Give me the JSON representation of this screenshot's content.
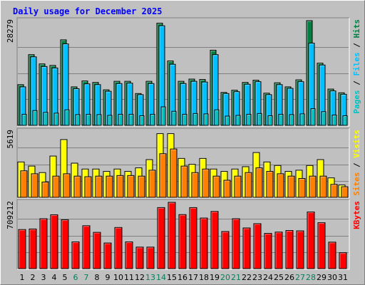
{
  "chart_data": {
    "type": "bar",
    "title": "Daily usage for December 2025",
    "x_labels": [
      "1",
      "2",
      "3",
      "4",
      "5",
      "6",
      "7",
      "8",
      "9",
      "10",
      "11",
      "12",
      "13",
      "14",
      "15",
      "16",
      "17",
      "18",
      "19",
      "20",
      "21",
      "22",
      "23",
      "24",
      "25",
      "26",
      "27",
      "28",
      "29",
      "30",
      "31"
    ],
    "weekend_days": [
      6,
      7,
      13,
      14,
      20,
      21,
      27,
      28
    ],
    "panels": [
      {
        "name": "hits-files-pages",
        "y_max_label": "28279",
        "y_max": 28279,
        "series_labels": [
          "Pages",
          "Files",
          "Hits"
        ],
        "series": [
          {
            "name": "Hits",
            "color": "#008040",
            "values": [
              11000,
              19100,
              16600,
              16200,
              23100,
              10400,
              12000,
              11600,
              9600,
              11900,
              11900,
              8600,
              11900,
              27600,
              17400,
              11900,
              12500,
              12400,
              20300,
              8900,
              9500,
              11600,
              12200,
              8700,
              11500,
              10400,
              12300,
              28279,
              16800,
              9800,
              8800
            ]
          },
          {
            "name": "Files",
            "color": "#00c0ff",
            "values": [
              10400,
              18500,
              15900,
              15500,
              22000,
              9900,
              11200,
              11000,
              9200,
              11300,
              11400,
              8300,
              11300,
              26900,
              16500,
              11300,
              11900,
              11700,
              19100,
              8600,
              9100,
              11100,
              11800,
              8300,
              11000,
              10000,
              11800,
              22200,
              16300,
              9300,
              8400
            ]
          },
          {
            "name": "Pages",
            "color": "#00c0c0",
            "values": [
              3000,
              4000,
              3500,
              3300,
              4200,
              2900,
              3000,
              2900,
              2700,
              3000,
              3000,
              2600,
              3000,
              5000,
              3800,
              3000,
              3200,
              3100,
              4200,
              2500,
              2700,
              3000,
              3200,
              2600,
              3000,
              2900,
              3100,
              4500,
              3700,
              2800,
              2600
            ]
          }
        ]
      },
      {
        "name": "visits-sites",
        "y_max_label": "5619",
        "y_max": 5619,
        "series_labels": [
          "Sites",
          "Visits"
        ],
        "series": [
          {
            "name": "Visits",
            "color": "#ffff00",
            "values": [
              3000,
              2650,
              2100,
              3500,
              4900,
              2900,
              2400,
              2400,
              2200,
              2400,
              2200,
              2500,
              3200,
              5400,
              5400,
              3300,
              2800,
              3300,
              2400,
              2200,
              2400,
              2600,
              3800,
              3000,
              2700,
              2200,
              2300,
              2700,
              3200,
              1650,
              1050
            ]
          },
          {
            "name": "Sites",
            "color": "#ff8000",
            "values": [
              2250,
              2000,
              1300,
              1800,
              2000,
              1800,
              1750,
              1800,
              1800,
              1850,
              1850,
              1800,
              2300,
              3700,
              4100,
              2650,
              2100,
              2400,
              1800,
              1450,
              1800,
              2100,
              2500,
              2200,
              2000,
              1800,
              1600,
              1800,
              1800,
              1100,
              900
            ]
          }
        ]
      },
      {
        "name": "kbytes",
        "y_max_label": "709212",
        "y_max": 709212,
        "series_labels": [
          "KBytes"
        ],
        "series": [
          {
            "name": "KBytes",
            "color": "#ff0000",
            "values": [
              418000,
              424000,
              534000,
              576000,
              523000,
              286000,
              459000,
              388000,
              274000,
              440000,
              286000,
              230000,
              230000,
              653000,
              709212,
              578000,
              653000,
              541000,
              612000,
              397000,
              534000,
              435000,
              481000,
              377000,
              391000,
              408000,
              404000,
              606000,
              491000,
              283000,
              170000
            ]
          }
        ]
      }
    ],
    "colors": {
      "background": "#c0c0c0",
      "title": "#0000ff",
      "weekend_label": "#00805c",
      "weekday_label": "#000000"
    }
  }
}
